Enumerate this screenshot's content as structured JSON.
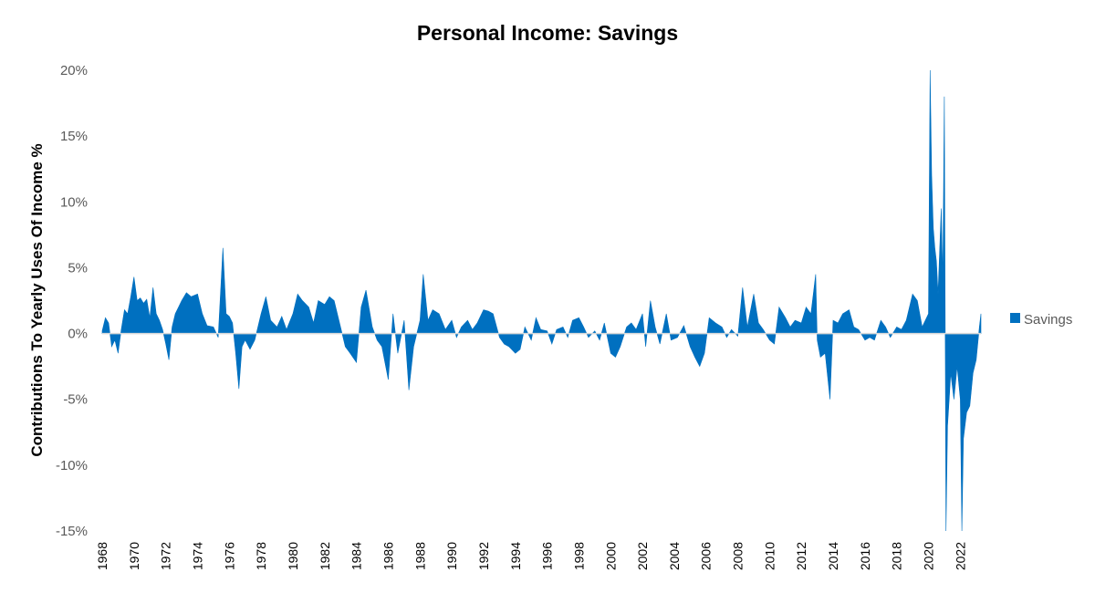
{
  "chart_data": {
    "type": "area",
    "title": "Personal Income: Savings",
    "ylabel": "Contributions To Yearly Uses Of Income %",
    "xlabel": "",
    "xlim": [
      1968,
      2023.3
    ],
    "ylim": [
      -15,
      20
    ],
    "y_ticks": [
      -15,
      -10,
      -5,
      0,
      5,
      10,
      15,
      20
    ],
    "y_tick_labels": [
      "-15%",
      "-10%",
      "-5%",
      "0%",
      "5%",
      "10%",
      "15%",
      "20%"
    ],
    "x_ticks": [
      1968,
      1970,
      1972,
      1974,
      1976,
      1978,
      1980,
      1982,
      1984,
      1986,
      1988,
      1990,
      1992,
      1994,
      1996,
      1998,
      2000,
      2002,
      2004,
      2006,
      2008,
      2010,
      2012,
      2014,
      2016,
      2018,
      2020,
      2022
    ],
    "x_tick_labels": [
      "1968",
      "1970",
      "1972",
      "1974",
      "1976",
      "1978",
      "1980",
      "1982",
      "1984",
      "1986",
      "1988",
      "1990",
      "1992",
      "1994",
      "1996",
      "1998",
      "2000",
      "2002",
      "2004",
      "2006",
      "2008",
      "2010",
      "2012",
      "2014",
      "2016",
      "2018",
      "2020",
      "2022"
    ],
    "grid": false,
    "legend": "right",
    "color": "#0070C0",
    "series": [
      {
        "name": "Savings",
        "x": [
          1968.0,
          1968.2,
          1968.4,
          1968.6,
          1968.8,
          1969.0,
          1969.2,
          1969.4,
          1969.6,
          1969.8,
          1970.0,
          1970.2,
          1970.4,
          1970.6,
          1970.8,
          1971.0,
          1971.2,
          1971.4,
          1971.6,
          1971.8,
          1972.0,
          1972.2,
          1972.4,
          1972.6,
          1972.8,
          1973.0,
          1973.3,
          1973.6,
          1974.0,
          1974.3,
          1974.6,
          1975.0,
          1975.3,
          1975.6,
          1975.8,
          1976.0,
          1976.2,
          1976.4,
          1976.6,
          1976.8,
          1977.0,
          1977.3,
          1977.6,
          1978.0,
          1978.3,
          1978.6,
          1979.0,
          1979.3,
          1979.6,
          1980.0,
          1980.3,
          1980.6,
          1981.0,
          1981.3,
          1981.6,
          1982.0,
          1982.3,
          1982.6,
          1983.0,
          1983.3,
          1983.6,
          1984.0,
          1984.3,
          1984.6,
          1985.0,
          1985.3,
          1985.6,
          1986.0,
          1986.3,
          1986.6,
          1987.0,
          1987.3,
          1987.6,
          1988.0,
          1988.2,
          1988.5,
          1988.8,
          1989.2,
          1989.6,
          1990.0,
          1990.3,
          1990.6,
          1991.0,
          1991.3,
          1991.6,
          1992.0,
          1992.3,
          1992.6,
          1993.0,
          1993.3,
          1993.6,
          1994.0,
          1994.3,
          1994.6,
          1995.0,
          1995.3,
          1995.6,
          1996.0,
          1996.3,
          1996.6,
          1997.0,
          1997.3,
          1997.6,
          1998.0,
          1998.3,
          1998.6,
          1999.0,
          1999.3,
          1999.6,
          2000.0,
          2000.3,
          2000.6,
          2001.0,
          2001.3,
          2001.6,
          2002.0,
          2002.2,
          2002.5,
          2002.8,
          2003.1,
          2003.5,
          2003.8,
          2004.2,
          2004.6,
          2005.0,
          2005.3,
          2005.6,
          2005.9,
          2006.2,
          2006.6,
          2007.0,
          2007.3,
          2007.6,
          2008.0,
          2008.3,
          2008.6,
          2009.0,
          2009.3,
          2009.6,
          2010.0,
          2010.3,
          2010.6,
          2011.0,
          2011.3,
          2011.6,
          2012.0,
          2012.3,
          2012.6,
          2012.9,
          2013.0,
          2013.2,
          2013.5,
          2013.8,
          2014.0,
          2014.3,
          2014.6,
          2015.0,
          2015.3,
          2015.6,
          2016.0,
          2016.3,
          2016.6,
          2017.0,
          2017.3,
          2017.6,
          2018.0,
          2018.3,
          2018.6,
          2019.0,
          2019.3,
          2019.6,
          2020.0,
          2020.1,
          2020.2,
          2020.3,
          2020.4,
          2020.5,
          2020.6,
          2020.8,
          2020.9,
          2021.0,
          2021.1,
          2021.2,
          2021.3,
          2021.4,
          2021.6,
          2021.8,
          2022.0,
          2022.1,
          2022.2,
          2022.4,
          2022.6,
          2022.8,
          2023.0,
          2023.2,
          2023.3
        ],
        "values": [
          0.2,
          1.2,
          0.8,
          -1.0,
          -0.5,
          -1.5,
          0.3,
          1.8,
          1.5,
          2.8,
          4.3,
          2.5,
          2.7,
          2.3,
          2.6,
          1.2,
          3.5,
          1.5,
          1.0,
          0.3,
          -0.8,
          -2.0,
          0.5,
          1.5,
          2.0,
          2.5,
          3.1,
          2.8,
          3.0,
          1.5,
          0.6,
          0.5,
          -0.3,
          6.5,
          1.5,
          1.3,
          0.8,
          -1.5,
          -4.2,
          -1.0,
          -0.5,
          -1.2,
          -0.5,
          1.5,
          2.8,
          1.0,
          0.5,
          1.3,
          0.3,
          1.5,
          3.0,
          2.5,
          2.0,
          0.8,
          2.5,
          2.2,
          2.8,
          2.5,
          0.5,
          -1.0,
          -1.5,
          -2.2,
          2.0,
          3.3,
          0.5,
          -0.5,
          -1.0,
          -3.5,
          1.5,
          -1.5,
          1.0,
          -4.3,
          -1.0,
          1.0,
          4.5,
          1.0,
          1.8,
          1.5,
          0.3,
          1.0,
          -0.3,
          0.5,
          1.0,
          0.3,
          0.8,
          1.8,
          1.7,
          1.5,
          -0.3,
          -0.8,
          -1.0,
          -1.5,
          -1.2,
          0.5,
          -0.5,
          1.2,
          0.3,
          0.2,
          -0.8,
          0.3,
          0.5,
          -0.3,
          1.0,
          1.2,
          0.5,
          -0.3,
          0.2,
          -0.5,
          0.8,
          -1.5,
          -1.8,
          -1.0,
          0.5,
          0.8,
          0.3,
          1.5,
          -1.0,
          2.5,
          0.5,
          -0.8,
          1.5,
          -0.5,
          -0.3,
          0.6,
          -1.0,
          -1.8,
          -2.5,
          -1.5,
          1.2,
          0.8,
          0.5,
          -0.3,
          0.3,
          -0.2,
          3.5,
          0.5,
          3.0,
          0.8,
          0.3,
          -0.5,
          -0.8,
          2.0,
          1.2,
          0.5,
          1.0,
          0.8,
          2.0,
          1.5,
          4.5,
          -0.5,
          -1.8,
          -1.5,
          -5.0,
          1.0,
          0.8,
          1.5,
          1.8,
          0.5,
          0.3,
          -0.5,
          -0.3,
          -0.5,
          1.0,
          0.5,
          -0.3,
          0.5,
          0.3,
          1.0,
          3.0,
          2.5,
          0.5,
          1.5,
          20.0,
          12.0,
          8.0,
          6.5,
          5.5,
          3.0,
          9.5,
          4.0,
          18.0,
          -15.0,
          -7.0,
          -5.0,
          -3.0,
          -5.0,
          -2.5,
          -5.0,
          -15.0,
          -8.0,
          -6.0,
          -5.5,
          -3.0,
          -2.0,
          0.5,
          1.5
        ]
      }
    ]
  }
}
